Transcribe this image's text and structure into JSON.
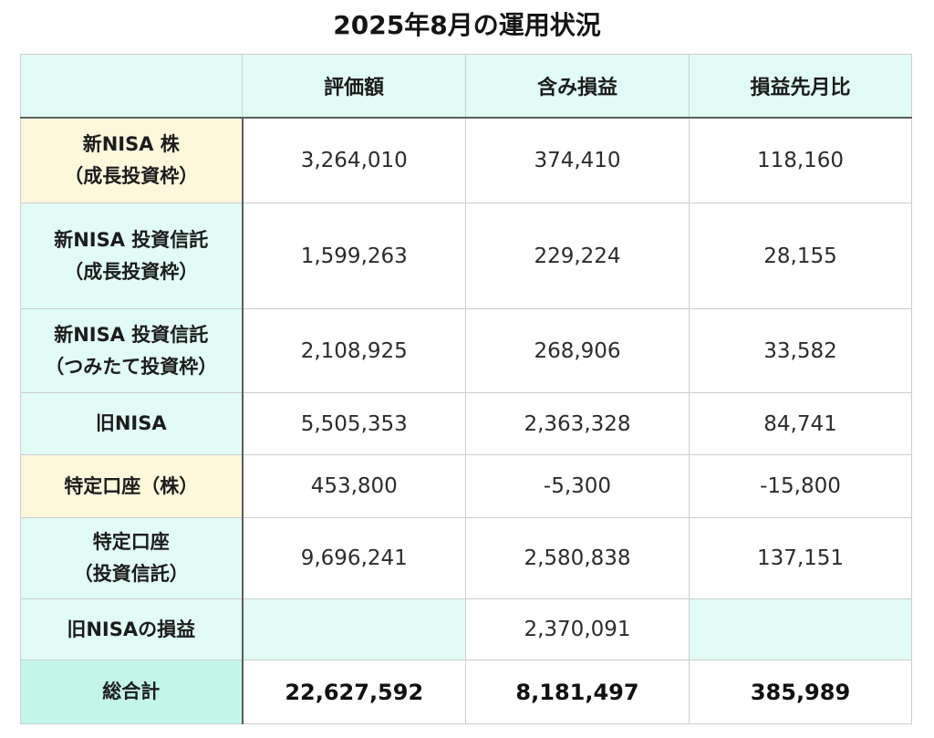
{
  "title": "2025年8月の運用状況",
  "colors": {
    "header_bg": "#e1fbf5",
    "label_bg_teal": "#e1fbf5",
    "label_bg_yellow": "#fdf7dc",
    "total_label_bg": "#c3f5e9",
    "border": "#cdcdcd",
    "divider": "#5d5d5d"
  },
  "table": {
    "columns": [
      "評価額",
      "含み損益",
      "損益先月比"
    ],
    "rows": [
      {
        "label": [
          "新NISA 株",
          "（成長投資枠）"
        ],
        "values": [
          "3,264,010",
          "374,410",
          "118,160"
        ]
      },
      {
        "label": [
          "新NISA 投資信託",
          "（成長投資枠）"
        ],
        "values": [
          "1,599,263",
          "229,224",
          "28,155"
        ]
      },
      {
        "label": [
          "新NISA 投資信託",
          "（つみたて投資枠）"
        ],
        "values": [
          "2,108,925",
          "268,906",
          "33,582"
        ]
      },
      {
        "label": [
          "旧NISA"
        ],
        "values": [
          "5,505,353",
          "2,363,328",
          "84,741"
        ]
      },
      {
        "label": [
          "特定口座（株）"
        ],
        "values": [
          "453,800",
          "-5,300",
          "-15,800"
        ]
      },
      {
        "label": [
          "特定口座",
          "（投資信託）"
        ],
        "values": [
          "9,696,241",
          "2,580,838",
          "137,151"
        ]
      },
      {
        "label": [
          "旧NISAの損益"
        ],
        "values": [
          null,
          "2,370,091",
          null
        ]
      }
    ],
    "total": {
      "label": "総合計",
      "values": [
        "22,627,592",
        "8,181,497",
        "385,989"
      ]
    }
  }
}
